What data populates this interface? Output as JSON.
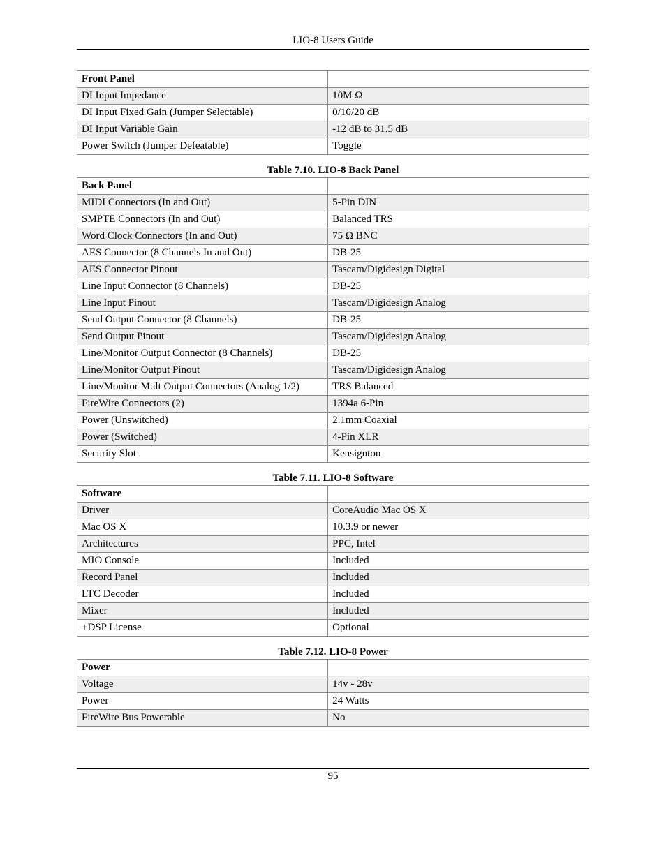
{
  "header_title": "LIO-8 Users Guide",
  "page_number": "95",
  "front_panel": {
    "header": "Front Panel",
    "rows": [
      {
        "label": "DI Input Impedance",
        "value": "10M Ω"
      },
      {
        "label": "DI Input Fixed Gain (Jumper Selectable)",
        "value": "0/10/20 dB"
      },
      {
        "label": "DI Input Variable Gain",
        "value": "-12 dB to 31.5 dB"
      },
      {
        "label": "Power Switch (Jumper Defeatable)",
        "value": "Toggle"
      }
    ]
  },
  "back_panel": {
    "caption": "Table 7.10. LIO-8 Back Panel",
    "header": "Back Panel",
    "rows": [
      {
        "label": "MIDI Connectors (In and Out)",
        "value": "5-Pin DIN"
      },
      {
        "label": "SMPTE Connectors (In and Out)",
        "value": "Balanced TRS"
      },
      {
        "label": "Word Clock Connectors (In and Out)",
        "value": "75 Ω BNC"
      },
      {
        "label": "AES Connector (8 Channels In and Out)",
        "value": "DB-25"
      },
      {
        "label": "AES Connector Pinout",
        "value": "Tascam/Digidesign Digital"
      },
      {
        "label": "Line Input Connector (8 Channels)",
        "value": "DB-25"
      },
      {
        "label": "Line Input Pinout",
        "value": "Tascam/Digidesign Analog"
      },
      {
        "label": "Send Output Connector (8 Channels)",
        "value": "DB-25"
      },
      {
        "label": "Send Output Pinout",
        "value": "Tascam/Digidesign Analog"
      },
      {
        "label": "Line/Monitor Output Connector (8 Channels)",
        "value": "DB-25"
      },
      {
        "label": "Line/Monitor Output Pinout",
        "value": "Tascam/Digidesign Analog"
      },
      {
        "label": "Line/Monitor Mult Output Connectors (Analog 1/2)",
        "value": "TRS Balanced"
      },
      {
        "label": "FireWire Connectors (2)",
        "value": "1394a 6-Pin"
      },
      {
        "label": "Power (Unswitched)",
        "value": "2.1mm Coaxial"
      },
      {
        "label": "Power (Switched)",
        "value": "4-Pin XLR"
      },
      {
        "label": "Security Slot",
        "value": "Kensignton"
      }
    ]
  },
  "software": {
    "caption": "Table 7.11. LIO-8 Software",
    "header": "Software",
    "rows": [
      {
        "label": "Driver",
        "value": "CoreAudio Mac OS X"
      },
      {
        "label": "Mac OS X",
        "value": "10.3.9 or newer"
      },
      {
        "label": "Architectures",
        "value": "PPC, Intel"
      },
      {
        "label": "MIO Console",
        "value": "Included"
      },
      {
        "label": "Record Panel",
        "value": "Included"
      },
      {
        "label": "LTC Decoder",
        "value": "Included"
      },
      {
        "label": "Mixer",
        "value": "Included"
      },
      {
        "label": "+DSP License",
        "value": "Optional"
      }
    ]
  },
  "power": {
    "caption": "Table 7.12. LIO-8 Power",
    "header": "Power",
    "rows": [
      {
        "label": "Voltage",
        "value": "14v - 28v"
      },
      {
        "label": "Power",
        "value": "24 Watts"
      },
      {
        "label": "FireWire Bus Powerable",
        "value": "No"
      }
    ]
  }
}
